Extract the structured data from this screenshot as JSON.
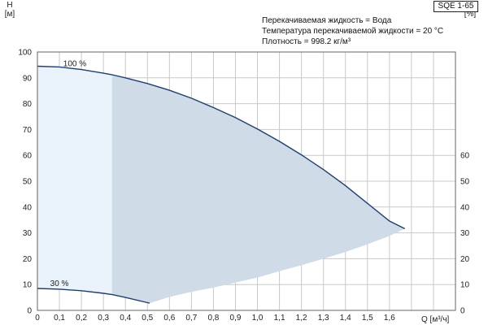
{
  "pump": "SQE 1-65",
  "info": {
    "liquid": "Перекачиваемая жидкость = Вода",
    "temperature": "Температура перекачиваемой жидкости = 20 °C",
    "density": "Плотность = 998.2 кг/м³"
  },
  "axes": {
    "y_left_label_line1": "H",
    "y_left_label_line2": "[м]",
    "y_right_label_line1": "eta",
    "y_right_label_line2": "[%]",
    "x_label": "Q [м³/ч]"
  },
  "chart_data": {
    "type": "line",
    "xlim": [
      0,
      1.9
    ],
    "ylim": [
      0,
      100
    ],
    "x_ticks": [
      0,
      0.1,
      0.2,
      0.3,
      0.4,
      0.5,
      0.6,
      0.7,
      0.8,
      0.9,
      1.0,
      1.1,
      1.2,
      1.3,
      1.4,
      1.5,
      1.6
    ],
    "x_tick_labels": [
      "0",
      "0,1",
      "0,2",
      "0,3",
      "0,4",
      "0,5",
      "0,6",
      "0,7",
      "0,8",
      "0,9",
      "1,0",
      "1,1",
      "1,2",
      "1,3",
      "1,4",
      "1,5",
      "1,6"
    ],
    "y_left_ticks": [
      0,
      10,
      20,
      30,
      40,
      50,
      60,
      70,
      80,
      90,
      100
    ],
    "y_right_ticks": [
      0,
      10,
      20,
      30,
      40,
      50,
      60
    ],
    "grid": true,
    "series": [
      {
        "name": "100 %",
        "color": "#1f3f6e",
        "points": [
          [
            0,
            94.5
          ],
          [
            0.1,
            94.2
          ],
          [
            0.2,
            93.2
          ],
          [
            0.3,
            91.8
          ],
          [
            0.34,
            91.2
          ],
          [
            0.4,
            90
          ],
          [
            0.5,
            87.8
          ],
          [
            0.6,
            85.2
          ],
          [
            0.7,
            82.1
          ],
          [
            0.8,
            78.5
          ],
          [
            0.9,
            74.6
          ],
          [
            1.0,
            70.2
          ],
          [
            1.1,
            65.4
          ],
          [
            1.2,
            60.2
          ],
          [
            1.3,
            54.5
          ],
          [
            1.4,
            48.3
          ],
          [
            1.5,
            41.4
          ],
          [
            1.6,
            34.6
          ],
          [
            1.67,
            31.6
          ]
        ]
      },
      {
        "name": "30 %",
        "color": "#1f3f6e",
        "points": [
          [
            0,
            8.5
          ],
          [
            0.1,
            8.2
          ],
          [
            0.2,
            7.6
          ],
          [
            0.3,
            6.6
          ],
          [
            0.34,
            6.1
          ],
          [
            0.4,
            5.0
          ],
          [
            0.5,
            3.0
          ],
          [
            0.51,
            2.8
          ]
        ]
      }
    ],
    "operating_region": {
      "upper": [
        [
          0.34,
          91.2
        ],
        [
          0.4,
          90
        ],
        [
          0.5,
          87.8
        ],
        [
          0.6,
          85.2
        ],
        [
          0.7,
          82.1
        ],
        [
          0.8,
          78.5
        ],
        [
          0.9,
          74.6
        ],
        [
          1.0,
          70.2
        ],
        [
          1.1,
          65.4
        ],
        [
          1.2,
          60.2
        ],
        [
          1.3,
          54.5
        ],
        [
          1.4,
          48.3
        ],
        [
          1.5,
          41.4
        ],
        [
          1.6,
          34.6
        ],
        [
          1.67,
          31.6
        ]
      ],
      "lower": [
        [
          1.67,
          31.6
        ],
        [
          1.6,
          28.8
        ],
        [
          1.5,
          25.6
        ],
        [
          1.4,
          22.6
        ],
        [
          1.3,
          20.0
        ],
        [
          1.2,
          17.5
        ],
        [
          1.1,
          15.2
        ],
        [
          1.0,
          12.7
        ],
        [
          0.9,
          10.8
        ],
        [
          0.8,
          8.8
        ],
        [
          0.7,
          7.2
        ],
        [
          0.6,
          5.2
        ],
        [
          0.51,
          2.8
        ],
        [
          0.4,
          5.0
        ],
        [
          0.34,
          6.1
        ]
      ],
      "color": "#cfdbe6"
    },
    "low_flow_region": {
      "upper": [
        [
          0,
          94.5
        ],
        [
          0.1,
          94.2
        ],
        [
          0.2,
          93.2
        ],
        [
          0.3,
          91.8
        ],
        [
          0.34,
          91.2
        ]
      ],
      "lower": [
        [
          0.34,
          6.1
        ],
        [
          0.3,
          6.6
        ],
        [
          0.2,
          7.6
        ],
        [
          0.1,
          8.2
        ],
        [
          0,
          8.5
        ]
      ],
      "color": "#eaf3fb"
    }
  }
}
